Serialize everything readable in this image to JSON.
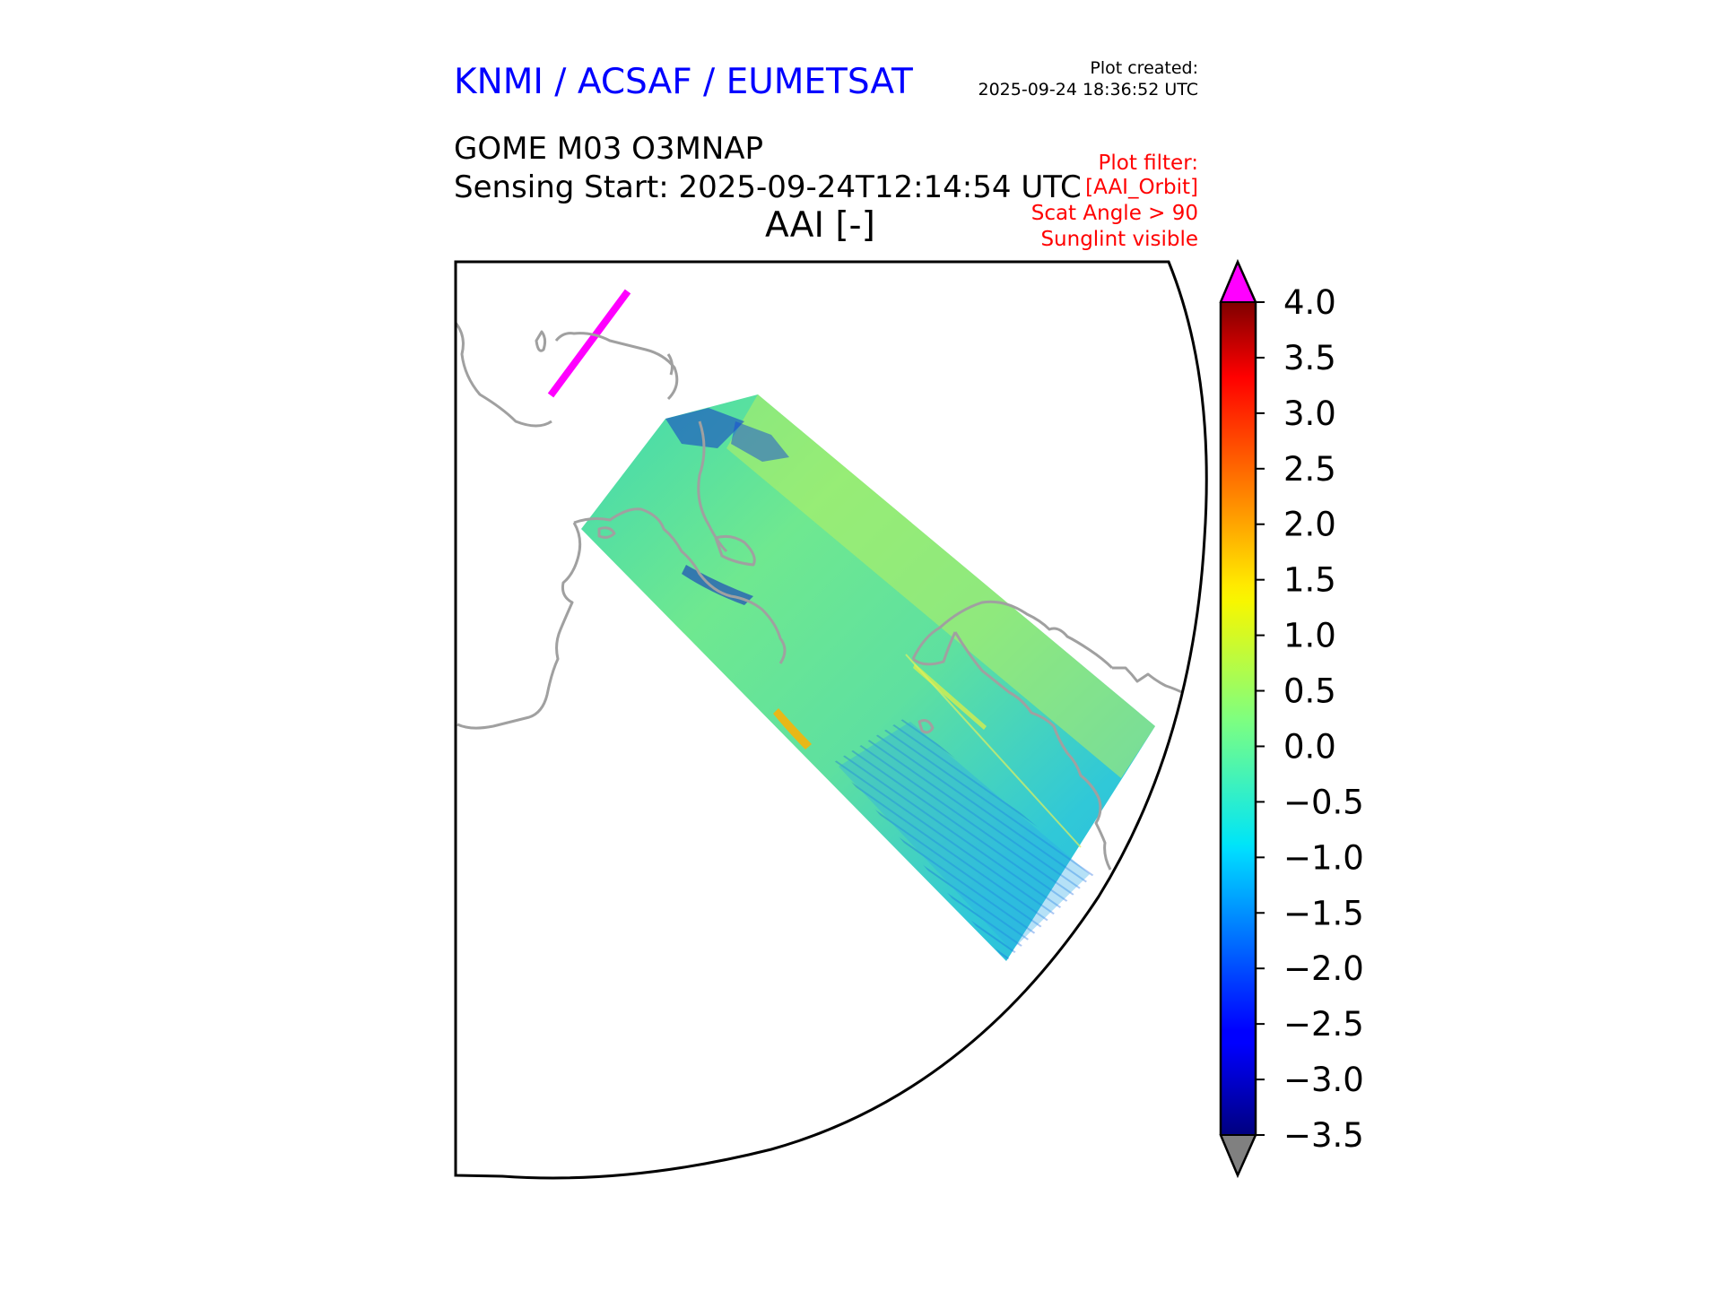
{
  "header": {
    "organisation": "KNMI / ACSAF / EUMETSAT",
    "plot_created_label": "Plot created:",
    "plot_created_time": "2025-09-24 18:36:52 UTC"
  },
  "product": {
    "name": "GOME M03 O3MNAP",
    "sensing_start": "Sensing Start: 2025-09-24T12:14:54 UTC"
  },
  "variable": "AAI [-]",
  "filter": {
    "label": "Plot filter:",
    "lines": [
      "[AAI_Orbit]",
      "Scat Angle > 90",
      "Sunglint visible"
    ]
  },
  "colorbar": {
    "min": -3.5,
    "max": 4.0,
    "ticks": [
      "4.0",
      "3.5",
      "3.0",
      "2.5",
      "2.0",
      "1.5",
      "1.0",
      "0.5",
      "0.0",
      "−0.5",
      "−1.0",
      "−1.5",
      "−2.0",
      "−2.5",
      "−3.0",
      "−3.5"
    ],
    "over_color": "#ff00ff",
    "under_color": "#808080",
    "colormap": "jet"
  },
  "map": {
    "coastline_color": "#a0a0a0",
    "swath_dominant_range": [
      -1.0,
      1.0
    ],
    "flagged_track_color": "#ff00ff"
  }
}
